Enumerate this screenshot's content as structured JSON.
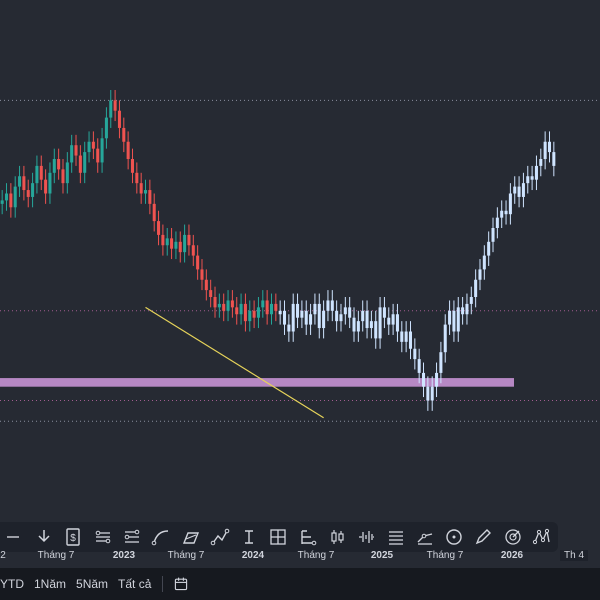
{
  "chart_data": {
    "type": "candlestick",
    "x_ticks": [
      {
        "label": "2",
        "bold": false
      },
      {
        "label": "Tháng 7",
        "bold": false
      },
      {
        "label": "2023",
        "bold": true
      },
      {
        "label": "Tháng 7",
        "bold": false
      },
      {
        "label": "2024",
        "bold": true
      },
      {
        "label": "Tháng 7",
        "bold": false
      },
      {
        "label": "2025",
        "bold": true
      },
      {
        "label": "Tháng 7",
        "bold": false
      },
      {
        "label": "2026",
        "bold": true
      }
    ],
    "x_edge_label": "Th 4",
    "price_range": [
      0,
      100
    ],
    "candles_segment": {
      "description_values": "relative price level 0-100",
      "series": [
        68,
        70,
        66,
        72,
        75,
        71,
        69,
        73,
        78,
        74,
        70,
        76,
        80,
        77,
        73,
        79,
        84,
        81,
        76,
        82,
        85,
        83,
        79,
        86,
        92,
        97,
        94,
        89,
        85,
        80,
        76,
        73,
        70,
        71,
        67,
        62,
        58,
        55,
        57,
        54,
        56,
        53,
        58,
        55,
        52,
        48,
        45,
        42,
        40,
        37,
        38,
        36,
        39,
        37,
        35,
        38,
        33,
        36,
        34,
        37,
        39,
        35,
        38,
        36
      ]
    },
    "forecast_segment": {
      "series": [
        36,
        32,
        30,
        38,
        34,
        36,
        32,
        35,
        38,
        31,
        36,
        39,
        36,
        33,
        35,
        37,
        34,
        30,
        33,
        36,
        31,
        33,
        28,
        37,
        34,
        32,
        35,
        30,
        27,
        30,
        25,
        22,
        18,
        14,
        10,
        14,
        18,
        24,
        32,
        36,
        30,
        37,
        35,
        38,
        40,
        45,
        48,
        52,
        56,
        60,
        63,
        65,
        64,
        70,
        72,
        69,
        73,
        75,
        74,
        78,
        80,
        85,
        82,
        78
      ]
    },
    "horizontal_zone": {
      "from": 14,
      "to": 16.5,
      "color": "#c792d4"
    },
    "dotted_levels": [
      {
        "value": 97,
        "color": "#8a8fa0"
      },
      {
        "value": 36,
        "color": "#a05d8f"
      },
      {
        "value": 10,
        "color": "#a05d8f"
      },
      {
        "value": 4,
        "color": "#8a8fa0"
      }
    ],
    "trendline": {
      "from_index": 33,
      "from_value": 37,
      "to_index": 74,
      "to_value": 5,
      "color": "#e6d35a"
    },
    "colors": {
      "up": "#26a69a",
      "down": "#ef5350",
      "forecast": "#cfe4ff"
    }
  },
  "toolbar": {
    "tools": [
      {
        "name": "date-range-icon"
      },
      {
        "name": "arrow-down-icon"
      },
      {
        "name": "price-label-icon"
      },
      {
        "name": "parallel-channel-icon"
      },
      {
        "name": "channel-icon"
      },
      {
        "name": "curve-icon"
      },
      {
        "name": "brush-icon"
      },
      {
        "name": "path-icon"
      },
      {
        "name": "text-cursor-icon"
      },
      {
        "name": "frame-icon"
      },
      {
        "name": "fork-icon"
      },
      {
        "name": "candle-icon"
      },
      {
        "name": "bars-pattern-icon"
      },
      {
        "name": "lines-icon"
      },
      {
        "name": "projection-icon"
      },
      {
        "name": "circle-icon"
      },
      {
        "name": "pen-icon"
      },
      {
        "name": "target-icon"
      },
      {
        "name": "xabcd-icon"
      }
    ]
  },
  "bottom_ranges": [
    {
      "label": "YTD"
    },
    {
      "label": "1Năm"
    },
    {
      "label": "5Năm"
    },
    {
      "label": "Tất cả"
    }
  ]
}
